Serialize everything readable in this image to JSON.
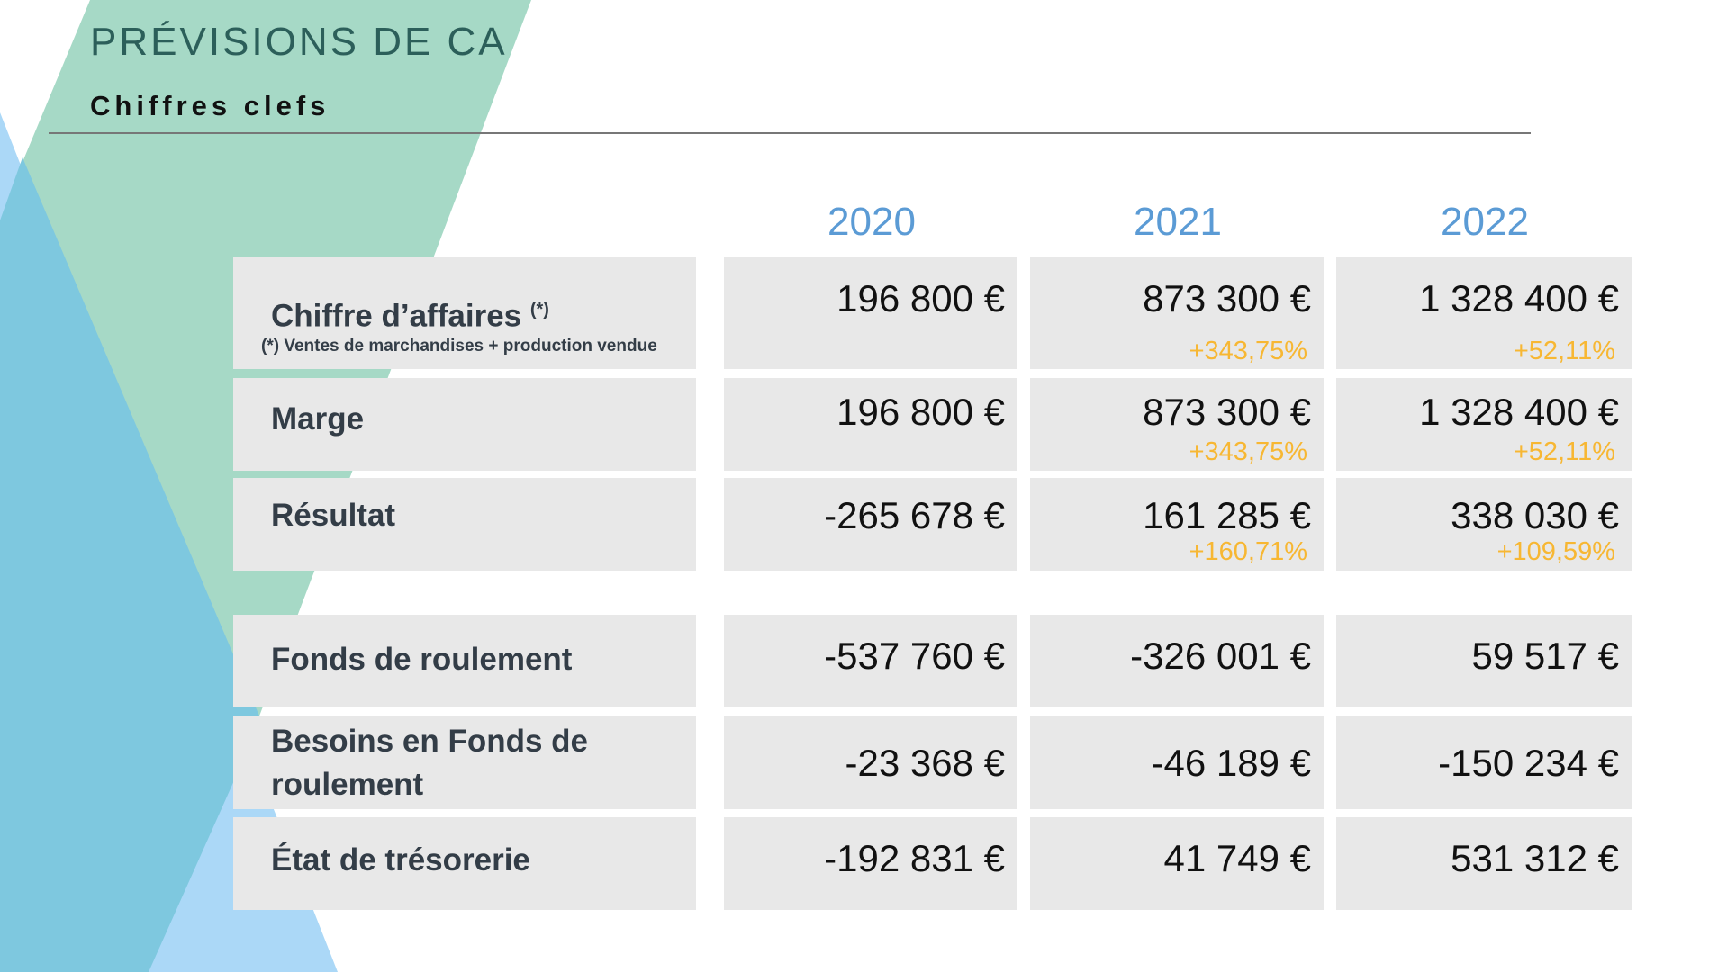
{
  "title": "PRÉVISIONS DE CA",
  "subtitle": "Chiffres clefs",
  "years": [
    "2020",
    "2021",
    "2022"
  ],
  "rows": [
    {
      "label": "Chiffre d’affaires",
      "label_sup": "(*)",
      "note": "(*) Ventes de marchandises + production vendue",
      "values": [
        "196 800 €",
        "873 300 €",
        "1 328 400 €"
      ],
      "growth": [
        "",
        "+343,75%",
        "+52,11%"
      ]
    },
    {
      "label": "Marge",
      "values": [
        "196 800 €",
        "873 300 €",
        "1 328 400 €"
      ],
      "growth": [
        "",
        "+343,75%",
        "+52,11%"
      ]
    },
    {
      "label": "Résultat",
      "values": [
        "-265 678 €",
        "161 285 €",
        "338 030 €"
      ],
      "growth": [
        "",
        "+160,71%",
        "+109,59%"
      ]
    },
    {
      "label": "Fonds de roulement",
      "values": [
        "-537 760 €",
        "-326 001 €",
        "59 517 €"
      ]
    },
    {
      "label_line1": "Besoins en Fonds de",
      "label_line2": "roulement",
      "values": [
        "-23 368 €",
        "-46 189 €",
        "-150 234 €"
      ]
    },
    {
      "label": "État de trésorerie",
      "values": [
        "-192 831 €",
        "41 749 €",
        "531 312 €"
      ]
    }
  ],
  "colors": {
    "title": "#2c5f5a",
    "year": "#5b9bd5",
    "growth": "#f7b733",
    "cell_bg": "#e8e8e8",
    "shape_green": "#a6d9c6",
    "shape_blue": "#7ec8df",
    "shape_lightblue": "#abd8f7"
  }
}
